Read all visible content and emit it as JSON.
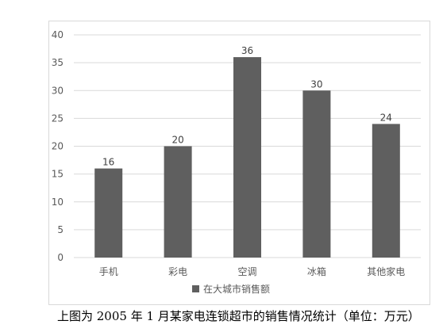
{
  "chart_data": {
    "type": "bar",
    "categories": [
      "手机",
      "彩电",
      "空调",
      "冰箱",
      "其他家电"
    ],
    "series": [
      {
        "name": "在大城市销售额",
        "values": [
          16,
          20,
          36,
          30,
          24
        ]
      }
    ],
    "ylim": [
      0,
      40
    ],
    "yticks": [
      0,
      5,
      10,
      15,
      20,
      25,
      30,
      35,
      40
    ],
    "grid": true,
    "legend_position": "bottom",
    "bar_color": "#5f5f5f",
    "grid_color": "#d9d9d9"
  },
  "caption": "上图为 2005 年 1 月某家电连锁超市的销售情况统计（单位：万元）"
}
